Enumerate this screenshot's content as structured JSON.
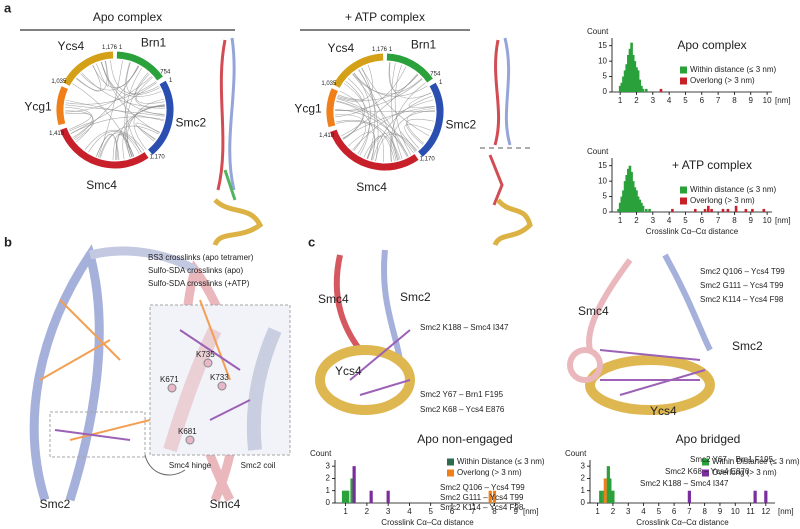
{
  "panel_labels": [
    "a",
    "b",
    "c"
  ],
  "circos": [
    {
      "title": "Apo complex",
      "segments": [
        "Ycs4",
        "Brn1",
        "Smc2",
        "Smc4",
        "Ycg1"
      ],
      "colors": [
        "#d4a017",
        "#2aa13a",
        "#2a4fb0",
        "#c8202a",
        "#f07f1a"
      ],
      "numbers": [
        "1,176",
        "1",
        "754",
        "1",
        "1,170",
        "1,035",
        "1,418"
      ]
    },
    {
      "title": "+ ATP complex",
      "segments": [
        "Ycs4",
        "Brn1",
        "Smc2",
        "Smc4",
        "Ycg1"
      ],
      "colors": [
        "#d4a017",
        "#2aa13a",
        "#2a4fb0",
        "#c8202a",
        "#f07f1a"
      ],
      "numbers": [
        "1,176",
        "1",
        "754",
        "1",
        "1,170",
        "1,035",
        "1,418"
      ]
    }
  ],
  "panel_b": {
    "legend": [
      {
        "text": "BS3 crosslinks (apo tetramer)",
        "color": "#9a9aa0"
      },
      {
        "text": "Sulfo-SDA crosslinks (apo)",
        "color": "#7b2d9e"
      },
      {
        "text": "Sulfo-SDA crosslinks (+ATP)",
        "color": "#f07f1a"
      }
    ],
    "residues": [
      "K735",
      "K671",
      "K733",
      "K681"
    ],
    "labels": [
      "Smc4 hinge",
      "Smc2 coil",
      "Smc2",
      "Smc4"
    ]
  },
  "panel_c": [
    {
      "labels": [
        "Smc4",
        "Smc2",
        "Ycs4"
      ],
      "crosslinks": [
        "Smc2 K188 – Smc4 I347",
        "Smc2 Y67 – Brn1 F195",
        "Smc2 K68 – Ycs4 E876"
      ],
      "crosslink_color": "#7b2d9e",
      "caption": "Apo non-engaged",
      "hist_notes": [
        "Smc2 Q106 – Ycs4 T99",
        "Smc2 G111 – Ycs4 T99",
        "Smc2 K114 – Ycs4 F98"
      ],
      "hist_note_color": "#f07f1a"
    },
    {
      "labels": [
        "Smc4",
        "Smc2",
        "Ycs4"
      ],
      "crosslinks": [
        "Smc2 Q106 – Ycs4 T99",
        "Smc2 G111 – Ycs4 T99",
        "Smc2 K114 – Ycs4 F98"
      ],
      "crosslink_color": "#f07f1a",
      "caption": "Apo bridged",
      "hist_notes": [
        "Smc2 Y67 – Brn1 F195",
        "Smc2 K68 – Ycs4 E876",
        "Smc2 K188 – Smc4 I347"
      ],
      "hist_note_color": "#7b2d9e"
    }
  ],
  "chart_data": [
    {
      "type": "bar",
      "title": "Apo complex",
      "y_label": "Count",
      "x_unit": "[nm]",
      "xlim": [
        0.5,
        10.3
      ],
      "ylim": [
        0,
        17.5
      ],
      "xticks": [
        1,
        2,
        3,
        4,
        5,
        6,
        7,
        8,
        9,
        10
      ],
      "yticks": [
        0,
        5,
        10,
        15
      ],
      "series": [
        {
          "name": "Within distance (≤ 3 nm)",
          "color": "#2aa13a",
          "x": [
            1.0,
            1.1,
            1.2,
            1.3,
            1.4,
            1.5,
            1.6,
            1.7,
            1.8,
            1.9,
            2.0,
            2.1,
            2.2,
            2.3,
            2.4,
            2.6
          ],
          "values": [
            2,
            3,
            5,
            7,
            9,
            12,
            14,
            16,
            12,
            10,
            8,
            7,
            4,
            2,
            1,
            1
          ]
        },
        {
          "name": "Overlong (> 3 nm)",
          "color": "#c8202a",
          "x": [
            3.5
          ],
          "values": [
            1
          ]
        }
      ]
    },
    {
      "type": "bar",
      "title": "+ ATP complex",
      "y_label": "Count",
      "x_unit": "[nm]",
      "x_label": "Crosslink Cα–Cα distance",
      "xlim": [
        0.5,
        10.3
      ],
      "ylim": [
        0,
        17.5
      ],
      "xticks": [
        1,
        2,
        3,
        4,
        5,
        6,
        7,
        8,
        9,
        10
      ],
      "yticks": [
        0,
        5,
        10,
        15
      ],
      "series": [
        {
          "name": "Within distance (≤ 3 nm)",
          "color": "#2aa13a",
          "x": [
            0.9,
            1.0,
            1.1,
            1.2,
            1.3,
            1.4,
            1.5,
            1.6,
            1.7,
            1.8,
            1.9,
            2.0,
            2.1,
            2.2,
            2.3,
            2.4,
            2.6,
            2.8
          ],
          "values": [
            1,
            3,
            5,
            7,
            10,
            12,
            14,
            15,
            13,
            10,
            8,
            7,
            5,
            4,
            3,
            2,
            1,
            1
          ]
        },
        {
          "name": "Overlong (> 3 nm)",
          "color": "#c8202a",
          "x": [
            4.2,
            5.6,
            6.2,
            6.4,
            6.6,
            7.3,
            7.6,
            8.1,
            8.7,
            9.1,
            9.8
          ],
          "values": [
            1,
            1,
            1,
            2,
            1,
            1,
            1,
            2,
            1,
            1,
            1
          ]
        }
      ]
    },
    {
      "type": "bar",
      "y_label": "Count",
      "x_unit": "[nm]",
      "x_label": "Crosslink Cα–Cα distance",
      "xlim": [
        0.5,
        9.2
      ],
      "ylim": [
        0,
        3.5
      ],
      "xticks": [
        1,
        2,
        3,
        4,
        5,
        6,
        7,
        8,
        9
      ],
      "yticks": [
        0,
        1,
        2,
        3
      ],
      "series": [
        {
          "name": "Within Distance (≤ 3 nm)",
          "color": "#2e6b4e",
          "x": [
            0.9,
            1.0,
            1.1,
            1.3,
            1.4,
            2.2,
            3.0
          ],
          "values": [
            1,
            1,
            1,
            2,
            3,
            1,
            1
          ],
          "colors": [
            "#2aa13a",
            "#2aa13a",
            "#2aa13a",
            "#2aa13a",
            "#7b2d9e",
            "#7b2d9e",
            "#7b2d9e"
          ]
        },
        {
          "name": "Overlong (> 3 nm)",
          "color": "#f07f1a",
          "x": [
            7.8,
            8.0
          ],
          "values": [
            1,
            1
          ]
        }
      ]
    },
    {
      "type": "bar",
      "y_label": "Count",
      "x_unit": "[nm]",
      "x_label": "Crosslink Cα–Cα distance",
      "xlim": [
        0.5,
        12.6
      ],
      "ylim": [
        0,
        3.5
      ],
      "xticks": [
        1,
        2,
        3,
        4,
        5,
        6,
        7,
        8,
        9,
        10,
        11,
        12
      ],
      "yticks": [
        0,
        1,
        2,
        3
      ],
      "series": [
        {
          "name": "Within Distance (≤ 3 nm)",
          "color": "#2aa13a",
          "x": [
            1.2,
            1.4,
            1.5,
            1.7,
            1.8,
            2.0
          ],
          "values": [
            1,
            1,
            2,
            3,
            2,
            1
          ],
          "colors": [
            "#2aa13a",
            "#2aa13a",
            "#f07f1a",
            "#2aa13a",
            "#2aa13a",
            "#2aa13a"
          ]
        },
        {
          "name": "Overlong (> 3 nm)",
          "color": "#7b2d9e",
          "x": [
            7.0,
            11.3,
            12.0
          ],
          "values": [
            1,
            1,
            1
          ]
        }
      ]
    }
  ]
}
